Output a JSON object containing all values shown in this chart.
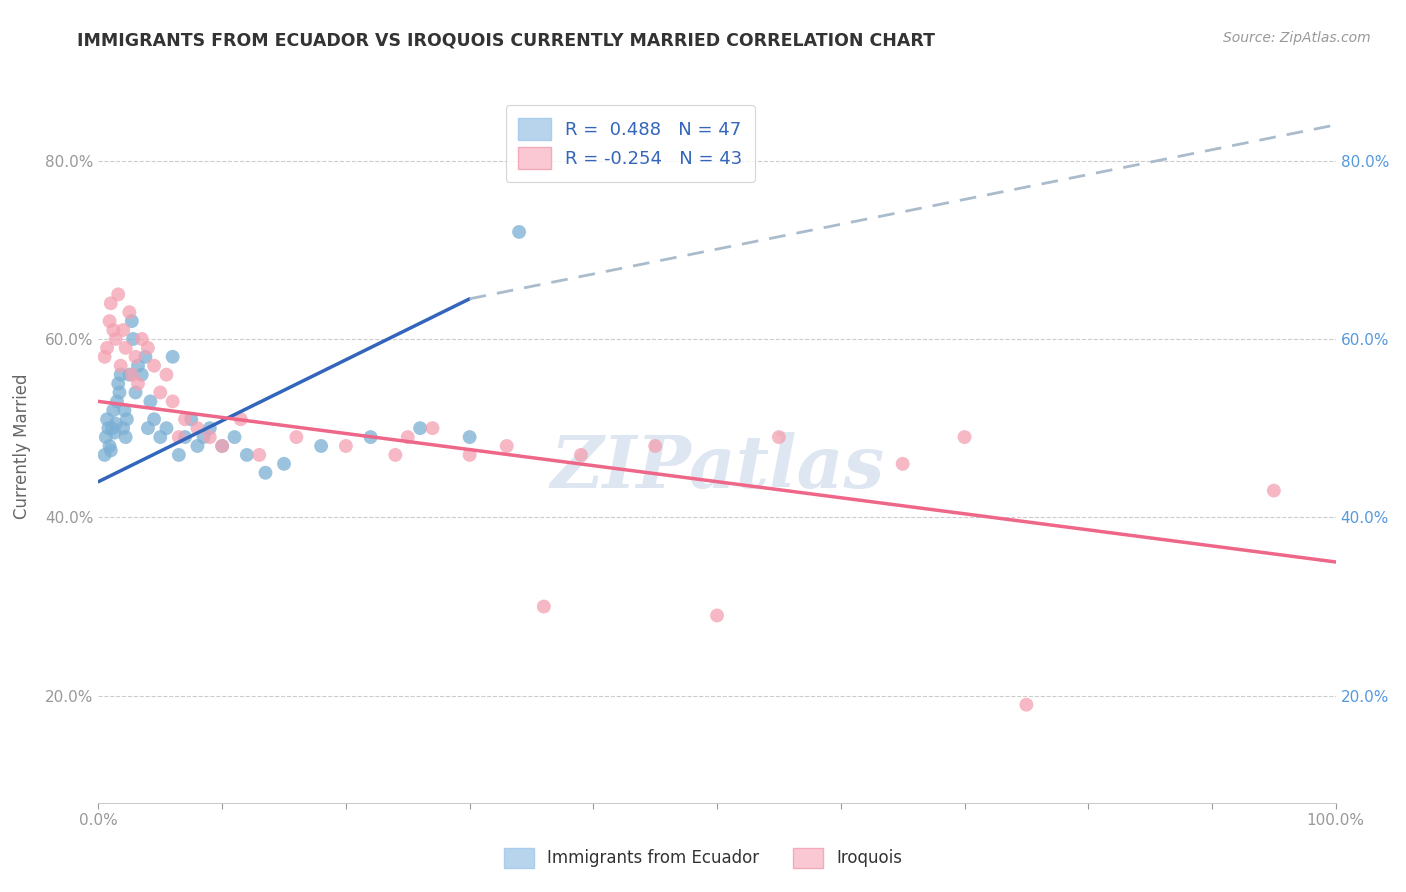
{
  "title": "IMMIGRANTS FROM ECUADOR VS IROQUOIS CURRENTLY MARRIED CORRELATION CHART",
  "source": "Source: ZipAtlas.com",
  "xlabel": "",
  "ylabel": "Currently Married",
  "x_min": 0.0,
  "x_max": 1.0,
  "y_min": 0.08,
  "y_max": 0.88,
  "blue_R": 0.488,
  "blue_N": 47,
  "pink_R": -0.254,
  "pink_N": 43,
  "blue_color": "#7BAFD4",
  "pink_color": "#F4A0B0",
  "blue_fill": "#B8D4EC",
  "pink_fill": "#F9C8D2",
  "trend_blue": "#3366BB",
  "trend_pink": "#EE6688",
  "trend_gray": "#AABBCC",
  "legend_label_blue": "Immigrants from Ecuador",
  "legend_label_pink": "Iroquois",
  "blue_x": [
    0.005,
    0.006,
    0.007,
    0.008,
    0.009,
    0.01,
    0.011,
    0.012,
    0.013,
    0.014,
    0.015,
    0.016,
    0.017,
    0.018,
    0.02,
    0.021,
    0.022,
    0.023,
    0.025,
    0.027,
    0.028,
    0.03,
    0.032,
    0.035,
    0.038,
    0.04,
    0.042,
    0.045,
    0.05,
    0.055,
    0.06,
    0.065,
    0.07,
    0.075,
    0.08,
    0.085,
    0.09,
    0.1,
    0.11,
    0.12,
    0.135,
    0.15,
    0.18,
    0.22,
    0.26,
    0.3,
    0.34
  ],
  "blue_y": [
    0.47,
    0.49,
    0.51,
    0.5,
    0.48,
    0.475,
    0.5,
    0.52,
    0.495,
    0.505,
    0.53,
    0.55,
    0.54,
    0.56,
    0.5,
    0.52,
    0.49,
    0.51,
    0.56,
    0.62,
    0.6,
    0.54,
    0.57,
    0.56,
    0.58,
    0.5,
    0.53,
    0.51,
    0.49,
    0.5,
    0.58,
    0.47,
    0.49,
    0.51,
    0.48,
    0.49,
    0.5,
    0.48,
    0.49,
    0.47,
    0.45,
    0.46,
    0.48,
    0.49,
    0.5,
    0.49,
    0.72
  ],
  "pink_x": [
    0.005,
    0.007,
    0.009,
    0.01,
    0.012,
    0.014,
    0.016,
    0.018,
    0.02,
    0.022,
    0.025,
    0.027,
    0.03,
    0.032,
    0.035,
    0.04,
    0.045,
    0.05,
    0.055,
    0.06,
    0.065,
    0.07,
    0.08,
    0.09,
    0.1,
    0.115,
    0.13,
    0.16,
    0.2,
    0.24,
    0.25,
    0.27,
    0.3,
    0.33,
    0.36,
    0.39,
    0.45,
    0.5,
    0.55,
    0.65,
    0.7,
    0.75,
    0.95
  ],
  "pink_y": [
    0.58,
    0.59,
    0.62,
    0.64,
    0.61,
    0.6,
    0.65,
    0.57,
    0.61,
    0.59,
    0.63,
    0.56,
    0.58,
    0.55,
    0.6,
    0.59,
    0.57,
    0.54,
    0.56,
    0.53,
    0.49,
    0.51,
    0.5,
    0.49,
    0.48,
    0.51,
    0.47,
    0.49,
    0.48,
    0.47,
    0.49,
    0.5,
    0.47,
    0.48,
    0.3,
    0.47,
    0.48,
    0.29,
    0.49,
    0.46,
    0.49,
    0.19,
    0.43
  ],
  "blue_trend_x0": 0.0,
  "blue_trend_y0": 0.44,
  "blue_trend_x1": 0.3,
  "blue_trend_y1": 0.645,
  "blue_trend_ext_x1": 1.0,
  "blue_trend_ext_y1": 0.84,
  "pink_trend_x0": 0.0,
  "pink_trend_y0": 0.53,
  "pink_trend_x1": 1.0,
  "pink_trend_y1": 0.35,
  "ytick_labels": [
    "20.0%",
    "40.0%",
    "60.0%",
    "80.0%"
  ],
  "ytick_values": [
    0.2,
    0.4,
    0.6,
    0.8
  ],
  "xtick_minor_values": [
    0.0,
    0.1,
    0.2,
    0.3,
    0.4,
    0.5,
    0.6,
    0.7,
    0.8,
    0.9,
    1.0
  ],
  "grid_color": "#CCCCCC",
  "background_color": "#FFFFFF",
  "watermark_text": "ZIPatlas",
  "marker_size": 100,
  "title_color": "#333333",
  "source_color": "#999999",
  "ylabel_color": "#666666",
  "tick_color": "#5599DD",
  "xtick_end_labels": [
    "0.0%",
    "100.0%"
  ]
}
